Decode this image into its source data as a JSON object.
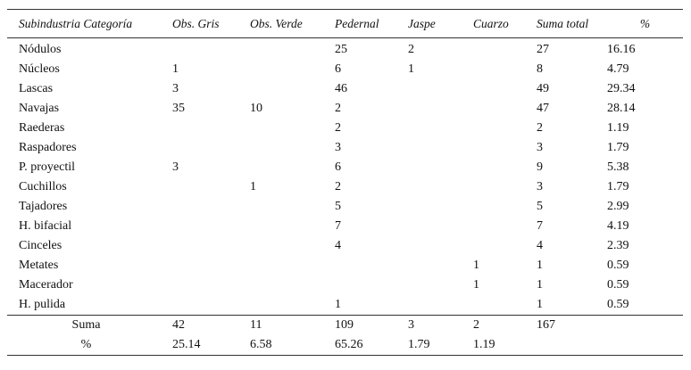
{
  "table": {
    "header": [
      "Subindustria Categoría",
      "Obs. Gris",
      "Obs. Verde",
      "Pedernal",
      "Jaspe",
      "Cuarzo",
      "Suma total",
      "%"
    ],
    "rows": [
      [
        "Nódulos",
        null,
        null,
        25,
        2,
        null,
        27,
        16.16
      ],
      [
        "Núcleos",
        1,
        null,
        6,
        1,
        null,
        8,
        4.79
      ],
      [
        "Lascas",
        3,
        null,
        46,
        null,
        null,
        49,
        29.34
      ],
      [
        "Navajas",
        35,
        10,
        2,
        null,
        null,
        47,
        28.14
      ],
      [
        "Raederas",
        null,
        null,
        2,
        null,
        null,
        2,
        1.19
      ],
      [
        "Raspadores",
        null,
        null,
        3,
        null,
        null,
        3,
        1.79
      ],
      [
        "P. proyectil",
        3,
        null,
        6,
        null,
        null,
        9,
        5.38
      ],
      [
        "Cuchillos",
        null,
        1,
        2,
        null,
        null,
        3,
        1.79
      ],
      [
        "Tajadores",
        null,
        null,
        5,
        null,
        null,
        5,
        2.99
      ],
      [
        "H. bifacial",
        null,
        null,
        7,
        null,
        null,
        7,
        4.19
      ],
      [
        "Cinceles",
        null,
        null,
        4,
        null,
        null,
        4,
        2.39
      ],
      [
        "Metates",
        null,
        null,
        null,
        null,
        1,
        1,
        0.59
      ],
      [
        "Macerador",
        null,
        null,
        null,
        null,
        1,
        1,
        0.59
      ],
      [
        "H. pulida",
        null,
        null,
        1,
        null,
        null,
        1,
        0.59
      ]
    ],
    "footer": [
      [
        "Suma",
        42,
        11,
        109,
        3,
        2,
        167,
        null
      ],
      [
        "%",
        25.14,
        6.58,
        65.26,
        1.79,
        1.19,
        null,
        null
      ]
    ]
  }
}
